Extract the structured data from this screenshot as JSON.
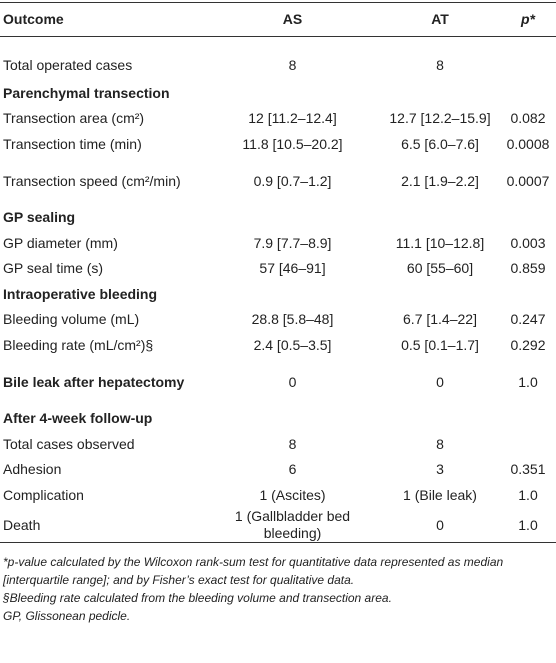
{
  "table": {
    "header": [
      "Outcome",
      "AS",
      "AT",
      "p*"
    ],
    "rows": [
      [
        "Total operated cases",
        "8",
        "8",
        ""
      ],
      [
        "Parenchymal transection"
      ],
      [
        "Transection area (cm²)",
        "12 [11.2–12.4]",
        "12.7 [12.2–15.9]",
        "0.082"
      ],
      [
        "Transection time (min)",
        "11.8 [10.5–20.2]",
        "6.5 [6.0–7.6]",
        "0.0008"
      ],
      [
        "Transection speed (cm²/min)",
        "0.9 [0.7–1.2]",
        "2.1 [1.9–2.2]",
        "0.0007"
      ],
      [
        "GP sealing"
      ],
      [
        "GP diameter (mm)",
        "7.9 [7.7–8.9]",
        "11.1 [10–12.8]",
        "0.003"
      ],
      [
        "GP seal time (s)",
        "57 [46–91]",
        "60 [55–60]",
        "0.859"
      ],
      [
        "Intraoperative bleeding"
      ],
      [
        "Bleeding volume (mL)",
        "28.8 [5.8–48]",
        "6.7 [1.4–22]",
        "0.247"
      ],
      [
        "Bleeding rate (mL/cm²)§",
        "2.4 [0.5–3.5]",
        "0.5 [0.1–1.7]",
        "0.292"
      ],
      [
        "Bile leak after hepatectomy",
        "0",
        "0",
        "1.0"
      ],
      [
        "After 4-week follow-up"
      ],
      [
        "Total cases observed",
        "8",
        "8",
        ""
      ],
      [
        "Adhesion",
        "6",
        "3",
        "0.351"
      ],
      [
        "Complication",
        "1 (Ascites)",
        "1 (Bile leak)",
        "1.0"
      ],
      [
        "Death",
        "1 (Gallbladder bed bleeding)",
        "0",
        "1.0"
      ]
    ]
  },
  "notes": [
    "*p-value calculated by the Wilcoxon rank-sum test for quantitative data represented as median [interquartile range]; and by Fisher’s exact test for qualitative data.",
    "§Bleeding rate calculated from the bleeding volume and transection area.",
    "GP, Glissonean pedicle."
  ]
}
